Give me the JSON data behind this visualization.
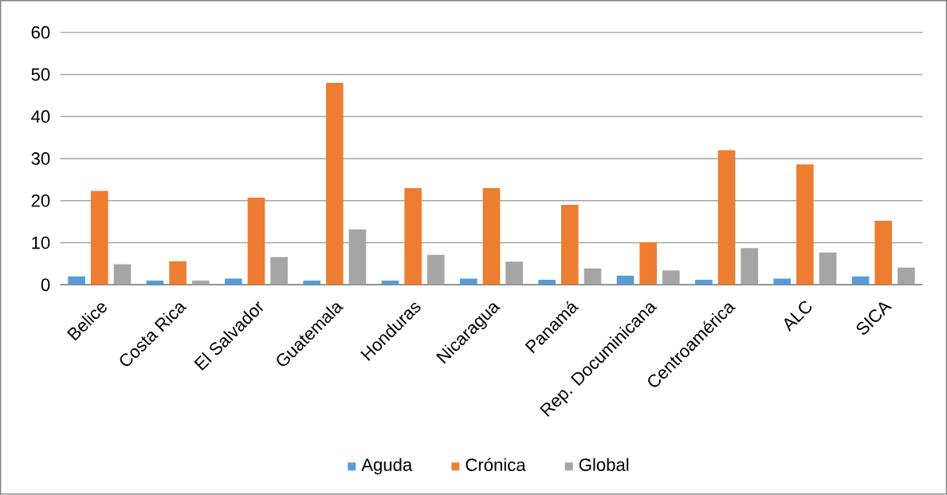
{
  "chart_data": {
    "type": "bar",
    "categories": [
      "Belice",
      "Costa Rica",
      "El Salvador",
      "Guatemala",
      "Honduras",
      "Nicaragua",
      "Panamá",
      "Rep. Documinicana",
      "Centroamérica",
      "ALC",
      "SICA"
    ],
    "series": [
      {
        "name": "Aguda",
        "color": "#5b9bd5",
        "values": [
          2.0,
          1.0,
          1.5,
          1.0,
          1.0,
          1.5,
          1.2,
          2.2,
          1.2,
          1.5,
          2.0
        ]
      },
      {
        "name": "Crónica",
        "color": "#ed7d31",
        "values": [
          22.3,
          5.6,
          20.7,
          48.0,
          23.0,
          23.0,
          19.0,
          10.1,
          32.0,
          28.6,
          15.2
        ]
      },
      {
        "name": "Global",
        "color": "#a5a5a5",
        "values": [
          4.9,
          1.0,
          6.6,
          13.2,
          7.1,
          5.5,
          3.9,
          3.4,
          8.7,
          7.7,
          4.1
        ]
      }
    ],
    "ylim": [
      0,
      60
    ],
    "yticks": [
      0,
      10,
      20,
      30,
      40,
      50,
      60
    ],
    "grid": "y",
    "legend": "bottom"
  }
}
